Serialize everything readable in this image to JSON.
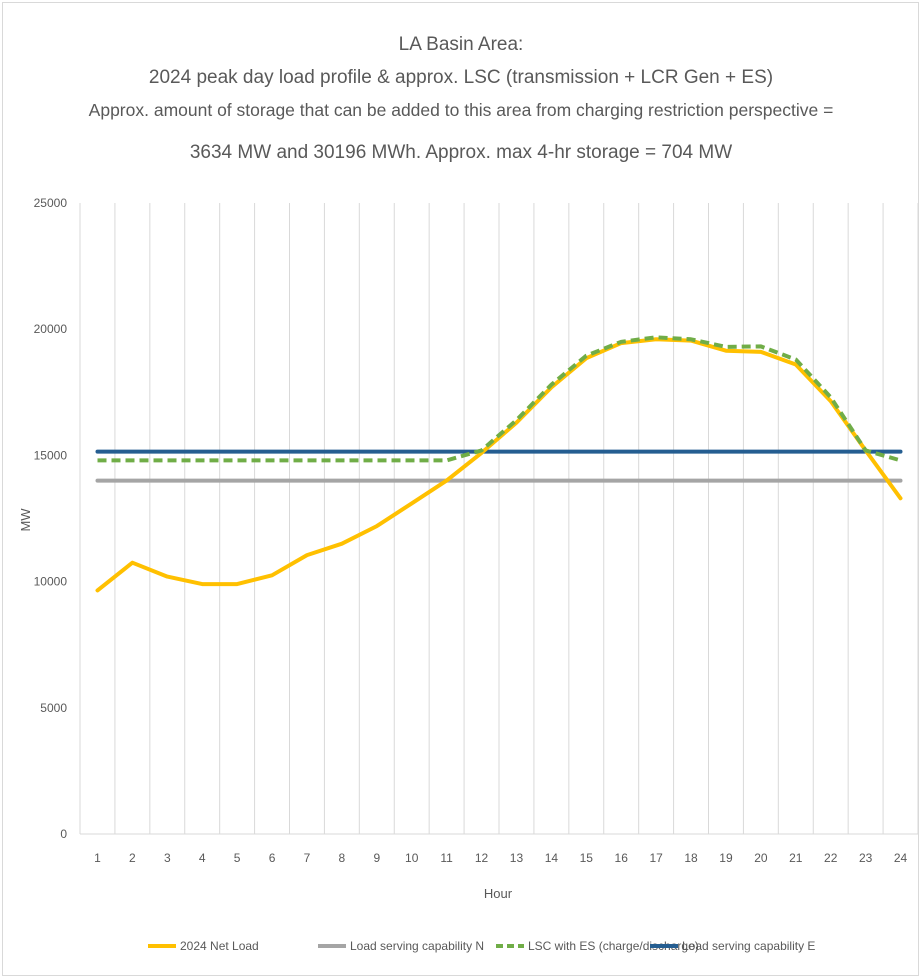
{
  "chart_data": {
    "type": "line",
    "title_lines": [
      "LA Basin Area:",
      "2024 peak day load profile & approx. LSC (transmission + LCR Gen + ES)",
      "Approx. amount of storage that can be added to this area from charging restriction perspective =",
      "3634 MW and 30196 MWh. Approx. max 4-hr storage = 704 MW"
    ],
    "xlabel": "Hour",
    "ylabel": "MW",
    "ylim": [
      0,
      25000
    ],
    "yticks": [
      0,
      5000,
      10000,
      15000,
      20000,
      25000
    ],
    "ytick_labels": [
      "0",
      "5000",
      "10000",
      "15000",
      "20000",
      "25000"
    ],
    "categories": [
      "1",
      "2",
      "3",
      "4",
      "5",
      "6",
      "7",
      "8",
      "9",
      "10",
      "11",
      "12",
      "13",
      "14",
      "15",
      "16",
      "17",
      "18",
      "19",
      "20",
      "21",
      "22",
      "23",
      "24"
    ],
    "grid": "vertical",
    "legend_position": "bottom",
    "series": [
      {
        "name": "2024 Net Load",
        "color": "#ffc000",
        "style": "solid",
        "values": [
          9650,
          10750,
          10200,
          9900,
          9900,
          10250,
          11050,
          11500,
          12200,
          13100,
          14000,
          15100,
          16300,
          17700,
          18850,
          19450,
          19600,
          19550,
          19150,
          19100,
          18600,
          17150,
          15200,
          13300
        ]
      },
      {
        "name": "Load serving capability N",
        "color": "#a5a5a5",
        "style": "solid",
        "values": [
          14000,
          14000,
          14000,
          14000,
          14000,
          14000,
          14000,
          14000,
          14000,
          14000,
          14000,
          14000,
          14000,
          14000,
          14000,
          14000,
          14000,
          14000,
          14000,
          14000,
          14000,
          14000,
          14000,
          14000
        ]
      },
      {
        "name": "LSC with ES (charge/discharge)",
        "color": "#70ad47",
        "style": "dashed",
        "values": [
          14800,
          14800,
          14800,
          14800,
          14800,
          14800,
          14800,
          14800,
          14800,
          14800,
          14800,
          15200,
          16400,
          17800,
          18950,
          19500,
          19680,
          19600,
          19300,
          19320,
          18800,
          17300,
          15200,
          14800
        ]
      },
      {
        "name": "Load serving capability E",
        "color": "#255e91",
        "style": "solid",
        "values": [
          15150,
          15150,
          15150,
          15150,
          15150,
          15150,
          15150,
          15150,
          15150,
          15150,
          15150,
          15150,
          15150,
          15150,
          15150,
          15150,
          15150,
          15150,
          15150,
          15150,
          15150,
          15150,
          15150,
          15150
        ]
      }
    ]
  }
}
